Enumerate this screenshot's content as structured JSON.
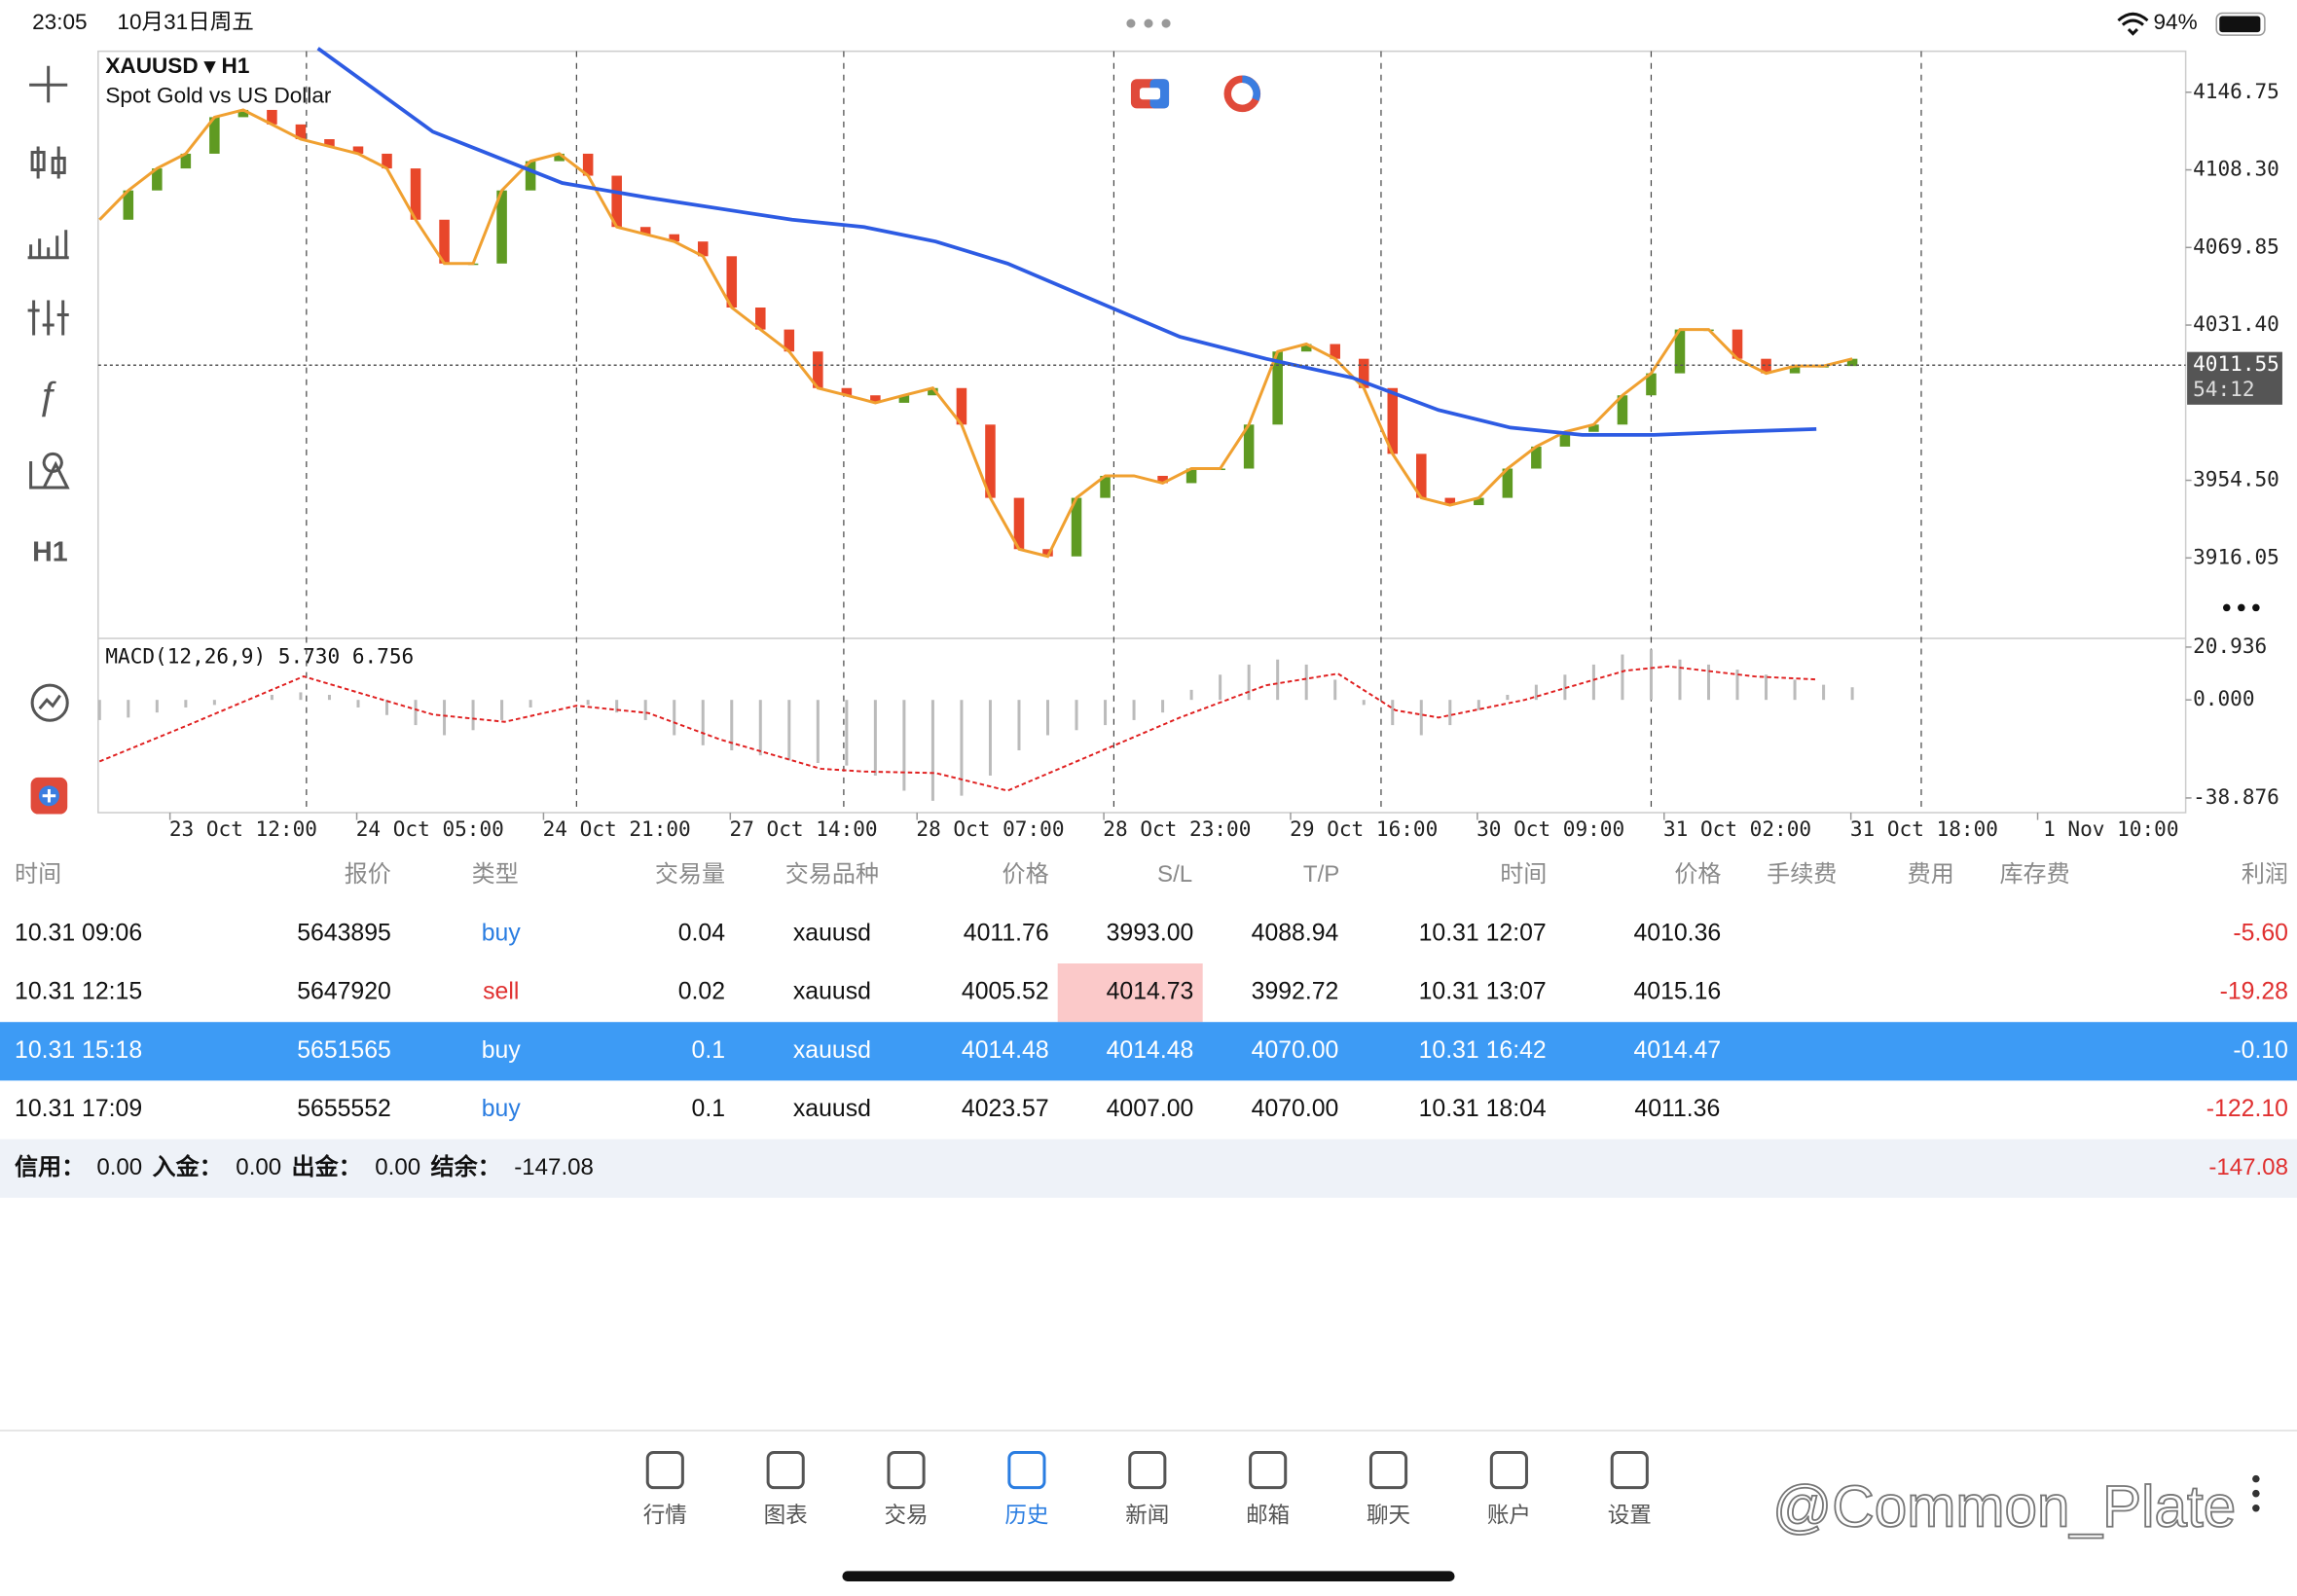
{
  "status_bar": {
    "time": "23:05",
    "date": "10月31日周五",
    "battery": "94%"
  },
  "toolbar": {
    "timeframe": "H1"
  },
  "chart_data": {
    "type": "candlestick",
    "symbol": "XAUUSD ▾ H1",
    "subtitle": "Spot Gold vs US Dollar",
    "close": [
      4083.6,
      4098.1,
      4109.0,
      4116.3,
      4134.4,
      4138.0,
      4130.8,
      4123.5,
      4119.9,
      4116.3,
      4109.0,
      4083.6,
      4061.9,
      4061.9,
      4098.1,
      4112.6,
      4116.3,
      4105.4,
      4080.0,
      4076.4,
      4072.8,
      4065.5,
      4040.1,
      4029.2,
      4018.3,
      4000.2,
      3996.6,
      3992.9,
      3996.6,
      4000.2,
      3982.1,
      3945.8,
      3920.4,
      3916.8,
      3945.8,
      3956.7,
      3956.7,
      3953.1,
      3960.3,
      3960.3,
      3982.1,
      4018.3,
      4022.0,
      4014.7,
      4000.2,
      3967.6,
      3945.8,
      3942.2,
      3945.8,
      3960.3,
      3971.2,
      3978.5,
      3982.1,
      3996.6,
      4007.5,
      4029.2,
      4029.2,
      4014.7,
      4007.5,
      4011.1,
      4011.1,
      4014.7
    ],
    "up_color": "#5f9a22",
    "down_color": "#e8472a",
    "ma_color": "#f0a030",
    "ma_slow": {
      "color": "#2d5be3",
      "x": [
        7.6,
        11.6,
        16.1,
        19.1,
        24.1,
        26.6,
        29.1,
        31.6,
        34.6,
        37.6,
        40.6,
        43.6,
        46.6,
        49.1,
        51.6,
        54.1,
        56.6,
        59.75
      ],
      "values": [
        4168.5,
        4127.2,
        4101.8,
        4094.5,
        4083.6,
        4080.0,
        4072.8,
        4061.9,
        4043.7,
        4025.6,
        4014.7,
        4005.3,
        3989.3,
        3980.6,
        3977.0,
        3977.0,
        3978.4,
        3979.9
      ]
    },
    "xlim": [
      -0.1,
      72.5
    ],
    "ylim": [
      3876.9,
      4167.06
    ],
    "yticks": [
      {
        "value": 4146.75,
        "label": "4146.75"
      },
      {
        "value": 4108.3,
        "label": "4108.30"
      },
      {
        "value": 4069.85,
        "label": "4069.85"
      },
      {
        "value": 4031.4,
        "label": "4031.40"
      },
      {
        "value": 3954.5,
        "label": "3954.50"
      },
      {
        "value": 3916.05,
        "label": "3916.05"
      }
    ],
    "xticks": [
      {
        "value": 5,
        "label": "23 Oct 12:00"
      },
      {
        "value": 11.5,
        "label": "24 Oct 05:00"
      },
      {
        "value": 18,
        "label": "24 Oct 21:00"
      },
      {
        "value": 24.5,
        "label": "27 Oct 14:00"
      },
      {
        "value": 31,
        "label": "28 Oct 07:00"
      },
      {
        "value": 37.5,
        "label": "28 Oct 23:00"
      },
      {
        "value": 44,
        "label": "29 Oct 16:00"
      },
      {
        "value": 50.5,
        "label": "30 Oct 09:00"
      },
      {
        "value": 57,
        "label": "31 Oct 02:00"
      },
      {
        "value": 63.5,
        "label": "31 Oct 18:00"
      },
      {
        "value": 70,
        "label": "1 Nov 10:00"
      }
    ],
    "xgrid": [
      7.2,
      16.6,
      25.9,
      35.3,
      44.6,
      54.0,
      63.4
    ],
    "current_price": {
      "value": 4011.55,
      "label": "4011.55",
      "timer": "54:12"
    },
    "macd": {
      "label": "MACD(12,26,9) 5.730 6.756",
      "ylim": [
        -44.7,
        23.8
      ],
      "yticks": [
        {
          "value": 20.936,
          "label": "20.936"
        },
        {
          "value": 0,
          "label": "0.000"
        },
        {
          "value": -38.876,
          "label": "-38.876"
        }
      ],
      "histogram": [
        -8,
        -7,
        -5,
        -3,
        -2,
        0,
        2,
        3,
        2,
        -3,
        -6,
        -10,
        -14,
        -12,
        -8,
        -3,
        0,
        -2,
        -5,
        -8,
        -14,
        -18,
        -20,
        -22,
        -24,
        -25,
        -26,
        -30,
        -36,
        -40,
        -38,
        -30,
        -20,
        -14,
        -12,
        -10,
        -8,
        -5,
        4,
        10,
        14,
        16,
        14,
        8,
        -2,
        -10,
        -14,
        -10,
        -4,
        2,
        6,
        10,
        14,
        18,
        20,
        16,
        14,
        12,
        10,
        8,
        6,
        5
      ],
      "signal": {
        "color": "#e02020",
        "x": [
          0,
          3.1,
          7.1,
          11.6,
          14.1,
          16.6,
          19.1,
          21.6,
          25.1,
          26.6,
          29.1,
          31.6,
          34.6,
          37.6,
          40.6,
          43.1,
          45.1,
          46.6,
          49.6,
          53.1,
          54.6,
          57.6,
          59.75
        ],
        "values": [
          -24.4,
          -9.9,
          9.3,
          -5.8,
          -8.7,
          -2.3,
          -5.2,
          -15.7,
          -27.3,
          -28.4,
          -29.0,
          -36.0,
          -21.5,
          -7.0,
          5.8,
          10.4,
          -4.1,
          -7.0,
          0,
          11.6,
          13.3,
          9.3,
          8.1
        ]
      }
    }
  },
  "table": {
    "columns": [
      "时间",
      "报价",
      "类型",
      "交易量",
      "交易品种",
      "价格",
      "S/L",
      "T/P",
      "时间",
      "价格",
      "手续费",
      "费用",
      "库存费",
      "利润"
    ],
    "selected_row": 2,
    "rows": [
      {
        "open_time": "10.31 09:06",
        "ticket": "5643895",
        "type": "buy",
        "type_color": "#2a7de1",
        "volume": "0.04",
        "symbol": "xauusd",
        "open_price": "4011.76",
        "sl": "3993.00",
        "tp": "4088.94",
        "close_time": "10.31 12:07",
        "close_price": "4010.36",
        "profit": "-5.60"
      },
      {
        "open_time": "10.31 12:15",
        "ticket": "5647920",
        "type": "sell",
        "type_color": "#e03030",
        "volume": "0.02",
        "symbol": "xauusd",
        "open_price": "4005.52",
        "sl": "4014.73",
        "sl_highlight": "#fbc9c9",
        "tp": "3992.72",
        "close_time": "10.31 13:07",
        "close_price": "4015.16",
        "profit": "-19.28"
      },
      {
        "open_time": "10.31 15:18",
        "ticket": "5651565",
        "type": "buy",
        "type_color": "#2a7de1",
        "volume": "0.1",
        "symbol": "xauusd",
        "open_price": "4014.48",
        "sl": "4014.48",
        "tp": "4070.00",
        "close_time": "10.31 16:42",
        "close_price": "4014.47",
        "profit": "-0.10"
      },
      {
        "open_time": "10.31 17:09",
        "ticket": "5655552",
        "type": "buy",
        "type_color": "#2a7de1",
        "volume": "0.1",
        "symbol": "xauusd",
        "open_price": "4023.57",
        "sl": "4007.00",
        "tp": "4070.00",
        "close_time": "10.31 18:04",
        "close_price": "4011.36",
        "profit": "-122.10"
      }
    ],
    "summary": [
      {
        "label": "信用：",
        "value": "0.00"
      },
      {
        "label": "入金：",
        "value": "0.00"
      },
      {
        "label": "出金：",
        "value": "0.00"
      },
      {
        "label": "结余：",
        "value": "-147.08"
      }
    ],
    "total": "-147.08"
  },
  "nav": {
    "items": [
      "行情",
      "图表",
      "交易",
      "历史",
      "新闻",
      "邮箱",
      "聊天",
      "账户",
      "设置"
    ],
    "active": 3
  },
  "watermark": "@Common_Plate"
}
